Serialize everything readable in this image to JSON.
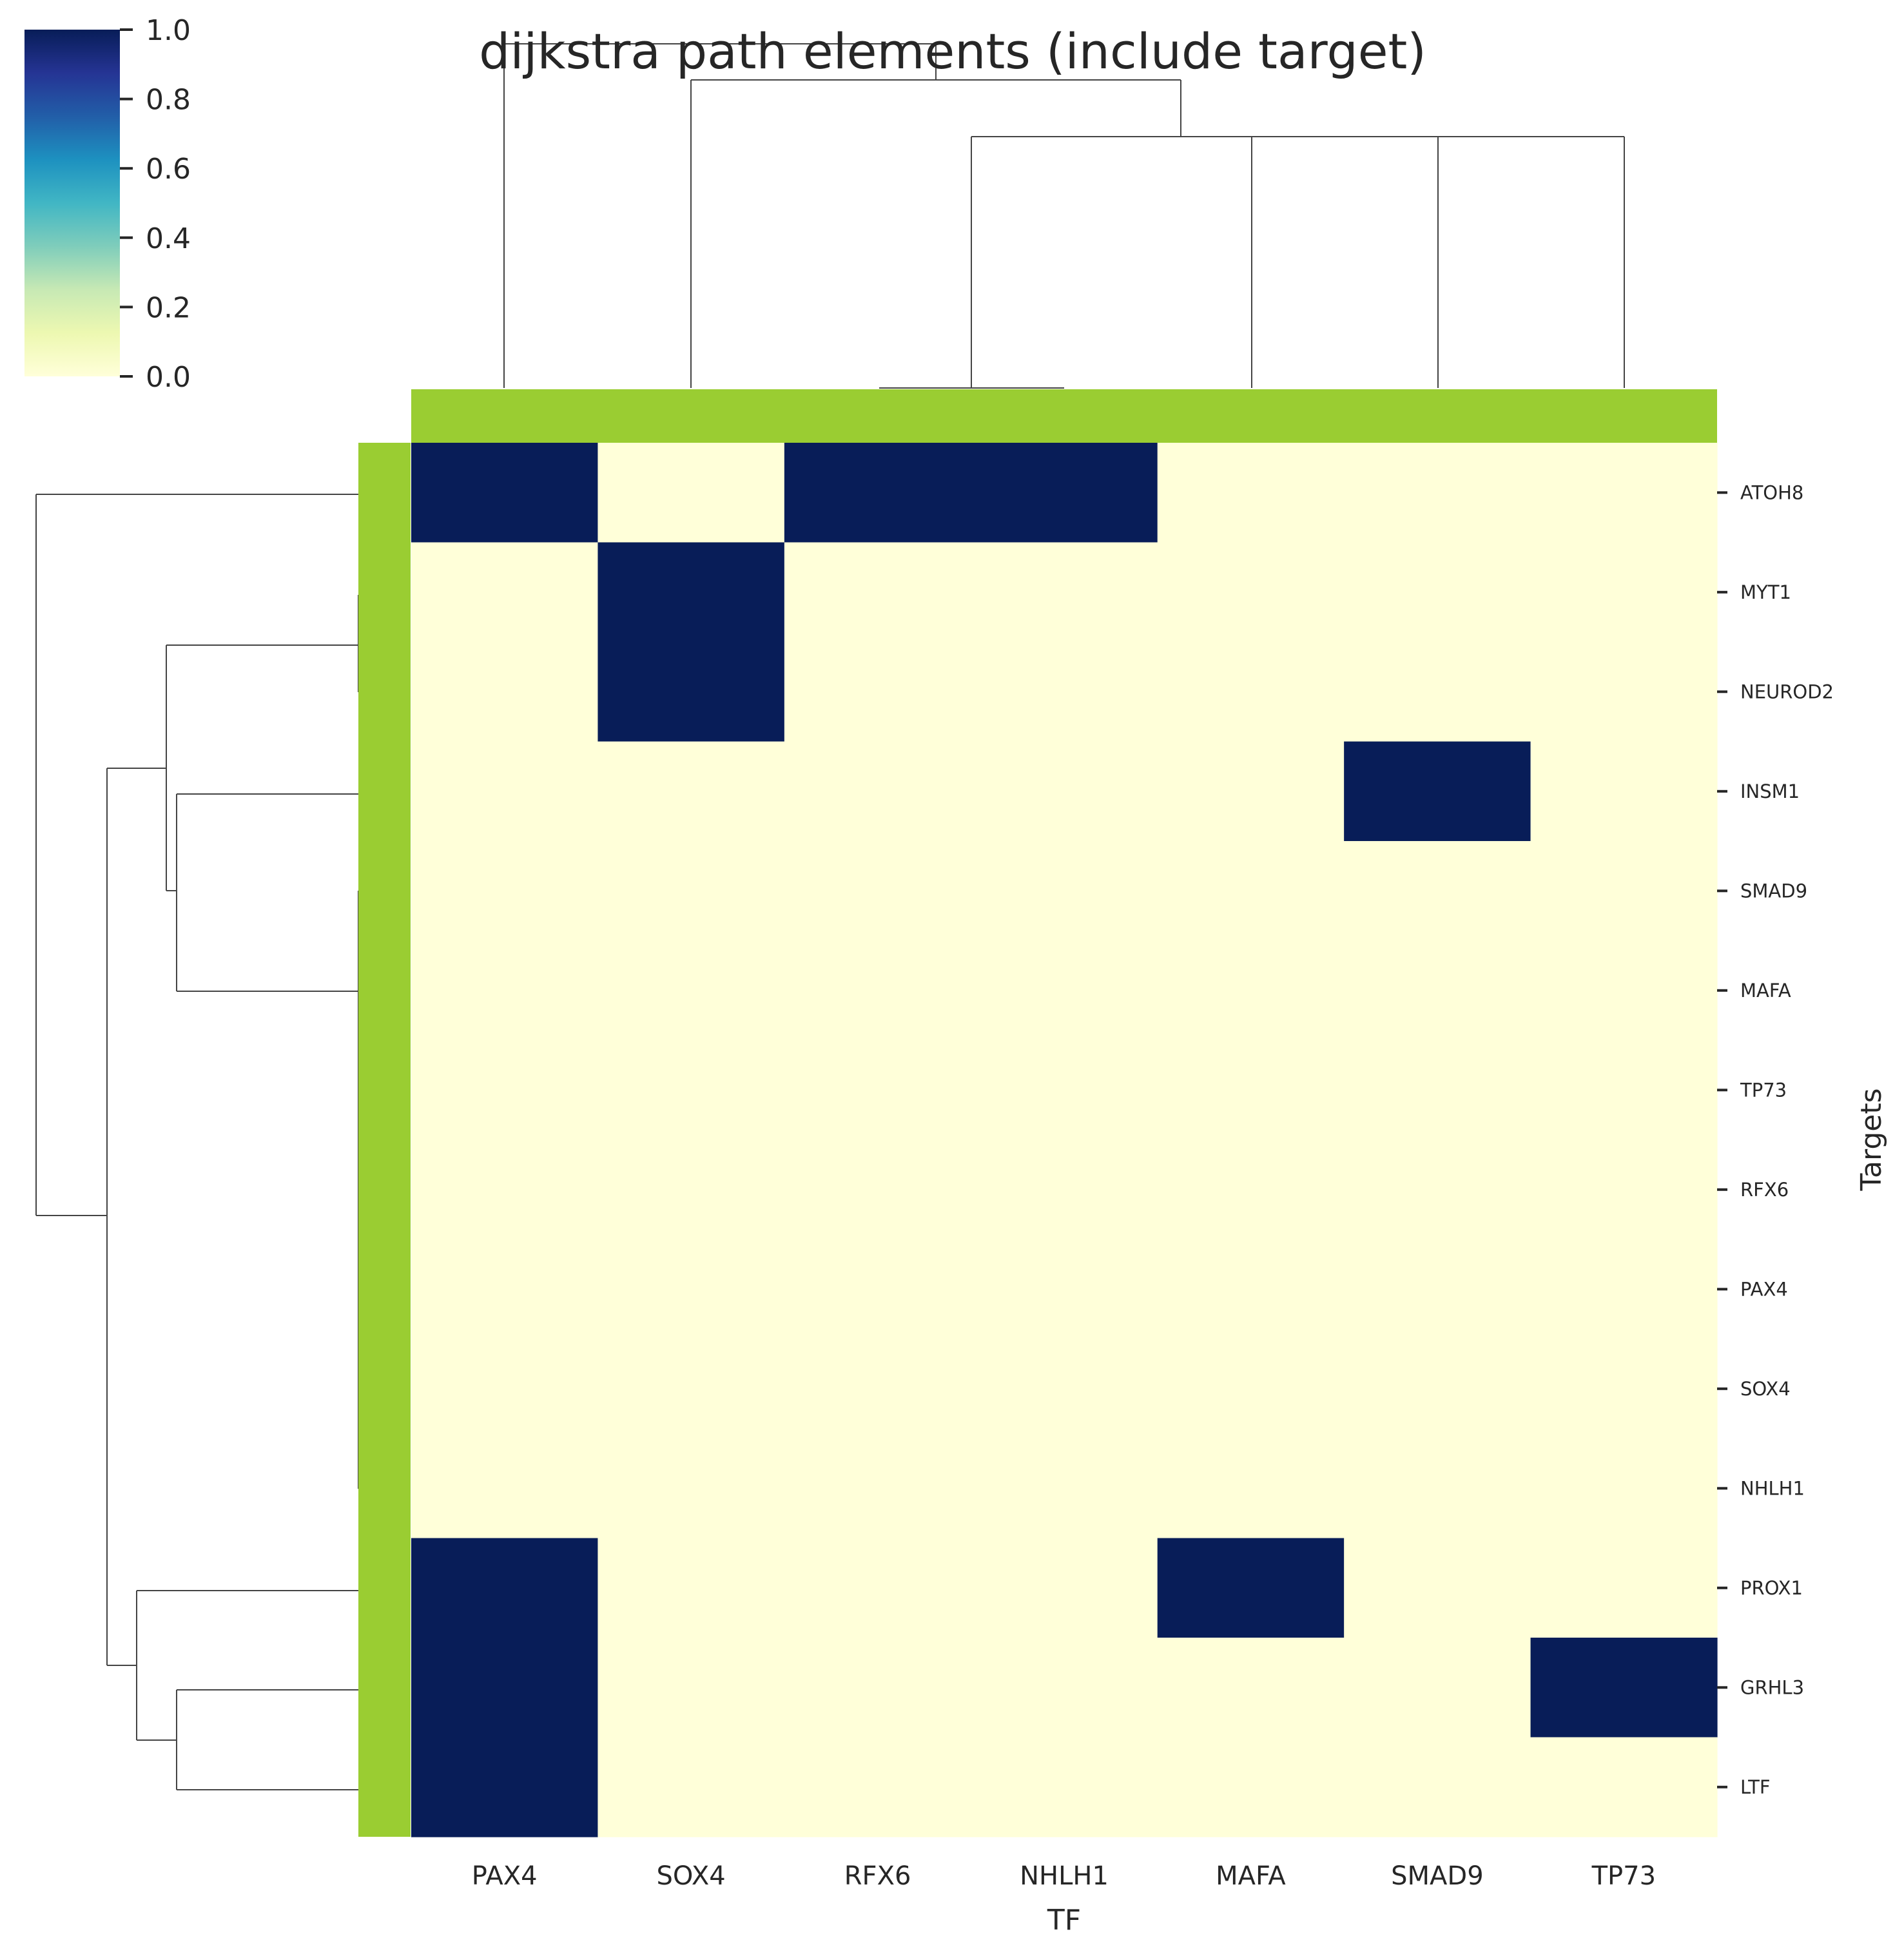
{
  "chart_data": {
    "type": "heatmap",
    "title": "dijkstra path elements (include target)",
    "xlabel": "TF",
    "ylabel": "Targets",
    "x_categories": [
      "PAX4",
      "SOX4",
      "RFX6",
      "NHLH1",
      "MAFA",
      "SMAD9",
      "TP73"
    ],
    "y_categories": [
      "ATOH8",
      "MYT1",
      "NEUROD2",
      "INSM1",
      "SMAD9",
      "MAFA",
      "TP73",
      "RFX6",
      "PAX4",
      "SOX4",
      "NHLH1",
      "PROX1",
      "GRHL3",
      "LTF"
    ],
    "values": [
      [
        1,
        0,
        1,
        1,
        0,
        0,
        0
      ],
      [
        0,
        1,
        0,
        0,
        0,
        0,
        0
      ],
      [
        0,
        1,
        0,
        0,
        0,
        0,
        0
      ],
      [
        0,
        0,
        0,
        0,
        0,
        1,
        0
      ],
      [
        0,
        0,
        0,
        0,
        0,
        0,
        0
      ],
      [
        0,
        0,
        0,
        0,
        0,
        0,
        0
      ],
      [
        0,
        0,
        0,
        0,
        0,
        0,
        0
      ],
      [
        0,
        0,
        0,
        0,
        0,
        0,
        0
      ],
      [
        0,
        0,
        0,
        0,
        0,
        0,
        0
      ],
      [
        0,
        0,
        0,
        0,
        0,
        0,
        0
      ],
      [
        0,
        0,
        0,
        0,
        0,
        0,
        0
      ],
      [
        1,
        0,
        0,
        0,
        1,
        0,
        0
      ],
      [
        1,
        0,
        0,
        0,
        0,
        0,
        1
      ],
      [
        1,
        0,
        0,
        0,
        0,
        0,
        0
      ]
    ],
    "colorbar": {
      "range": [
        0.0,
        1.0
      ],
      "ticks": [
        "0.0",
        "0.2",
        "0.4",
        "0.6",
        "0.8",
        "1.0"
      ],
      "colormap": "YlGnBu",
      "colors": [
        "#ffffd9",
        "#edf8b1",
        "#c7e9b4",
        "#7fcdbb",
        "#41b6c4",
        "#1d91c0",
        "#225ea8",
        "#253494",
        "#081d58"
      ]
    },
    "row_colors_color": "#9acd32",
    "col_colors_color": "#9acd32",
    "low_color": "#ffffd9",
    "high_color": "#081d58",
    "dendrogram_color": "#444444",
    "grid": false,
    "dendrograms": [
      "row",
      "column"
    ]
  }
}
